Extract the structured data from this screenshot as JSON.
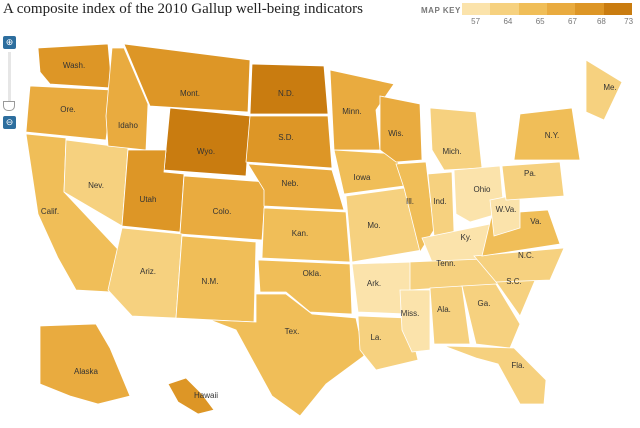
{
  "title": "A composite index of the 2010 Gallup well-being indicators",
  "map_key": {
    "label": "MAP KEY",
    "ticks": [
      "57",
      "64",
      "65",
      "67",
      "68",
      "73"
    ],
    "colors": [
      "#fbe3ab",
      "#f6d17f",
      "#f0be58",
      "#e9ab3f",
      "#dd9626",
      "#c97c10"
    ]
  },
  "zoom": {
    "in_icon": "zoom-in-icon",
    "out_icon": "zoom-out-icon"
  },
  "regions": [
    {
      "abbr": "Wash.",
      "tier": 4
    },
    {
      "abbr": "Ore.",
      "tier": 3
    },
    {
      "abbr": "Calif.",
      "tier": 2
    },
    {
      "abbr": "Nev.",
      "tier": 1
    },
    {
      "abbr": "Idaho",
      "tier": 3
    },
    {
      "abbr": "Mont.",
      "tier": 4
    },
    {
      "abbr": "Wyo.",
      "tier": 5
    },
    {
      "abbr": "Utah",
      "tier": 4
    },
    {
      "abbr": "Colo.",
      "tier": 3
    },
    {
      "abbr": "Ariz.",
      "tier": 1
    },
    {
      "abbr": "N.M.",
      "tier": 2
    },
    {
      "abbr": "N.D.",
      "tier": 5
    },
    {
      "abbr": "S.D.",
      "tier": 4
    },
    {
      "abbr": "Neb.",
      "tier": 3
    },
    {
      "abbr": "Kan.",
      "tier": 2
    },
    {
      "abbr": "Okla.",
      "tier": 2
    },
    {
      "abbr": "Tex.",
      "tier": 2
    },
    {
      "abbr": "Minn.",
      "tier": 3
    },
    {
      "abbr": "Iowa",
      "tier": 2
    },
    {
      "abbr": "Mo.",
      "tier": 1
    },
    {
      "abbr": "Ark.",
      "tier": 0
    },
    {
      "abbr": "La.",
      "tier": 1
    },
    {
      "abbr": "Wis.",
      "tier": 3
    },
    {
      "abbr": "Ill.",
      "tier": 2
    },
    {
      "abbr": "Mich.",
      "tier": 1
    },
    {
      "abbr": "Ind.",
      "tier": 1
    },
    {
      "abbr": "Ohio",
      "tier": 0
    },
    {
      "abbr": "Ky.",
      "tier": 0
    },
    {
      "abbr": "Tenn.",
      "tier": 1
    },
    {
      "abbr": "Miss.",
      "tier": 0
    },
    {
      "abbr": "Ala.",
      "tier": 1
    },
    {
      "abbr": "Ga.",
      "tier": 1
    },
    {
      "abbr": "Fla.",
      "tier": 1
    },
    {
      "abbr": "S.C.",
      "tier": 1
    },
    {
      "abbr": "N.C.",
      "tier": 1
    },
    {
      "abbr": "Va.",
      "tier": 2
    },
    {
      "abbr": "W.Va.",
      "tier": 0
    },
    {
      "abbr": "Pa.",
      "tier": 1
    },
    {
      "abbr": "N.Y.",
      "tier": 2
    },
    {
      "abbr": "Me.",
      "tier": 1
    },
    {
      "abbr": "Alaska",
      "tier": 3
    },
    {
      "abbr": "Hawaii",
      "tier": 4
    }
  ]
}
